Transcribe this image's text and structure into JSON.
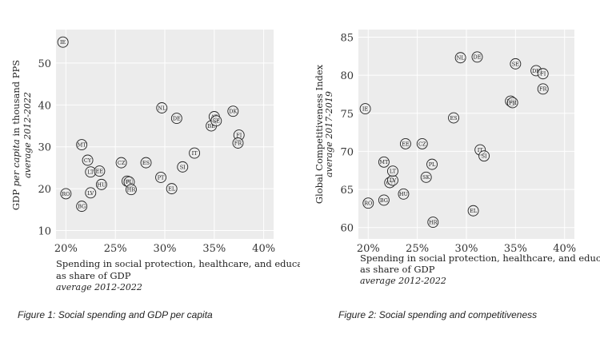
{
  "chart_data": [
    {
      "type": "scatter",
      "title": "",
      "xlabel": "Spending in social protection, healthcare, and education",
      "xlabel2": "as share of GDP",
      "xlabel_sub": "average 2012-2022",
      "ylabel_pre": "GDP ",
      "ylabel_italic": "per capita",
      "ylabel_post": " in thousand PPS",
      "ylabel_sub": "average 2012-2022",
      "xlim": [
        0.19,
        0.41
      ],
      "ylim": [
        8,
        58
      ],
      "xticks": [
        0.2,
        0.25,
        0.3,
        0.35,
        0.4
      ],
      "xtick_labels": [
        "20%",
        "25%",
        "30%",
        "35%",
        "40%"
      ],
      "yticks": [
        10,
        20,
        30,
        40,
        50
      ],
      "ytick_labels": [
        "10",
        "20",
        "30",
        "40",
        "50"
      ],
      "grid": true,
      "caption": "Figure 1: Social spending and GDP per capita",
      "points": [
        {
          "label": "IE",
          "x": 0.197,
          "y": 55.0
        },
        {
          "label": "RO",
          "x": 0.2,
          "y": 18.8
        },
        {
          "label": "BG",
          "x": 0.216,
          "y": 15.8
        },
        {
          "label": "MT",
          "x": 0.216,
          "y": 30.5
        },
        {
          "label": "CY",
          "x": 0.222,
          "y": 26.8
        },
        {
          "label": "LT",
          "x": 0.225,
          "y": 24.0
        },
        {
          "label": "EE",
          "x": 0.234,
          "y": 24.2
        },
        {
          "label": "LV",
          "x": 0.225,
          "y": 19.0
        },
        {
          "label": "HU",
          "x": 0.236,
          "y": 21.0
        },
        {
          "label": "CZ",
          "x": 0.256,
          "y": 26.2
        },
        {
          "label": "SK",
          "x": 0.262,
          "y": 21.8
        },
        {
          "label": "PL",
          "x": 0.264,
          "y": 21.6
        },
        {
          "label": "HR",
          "x": 0.266,
          "y": 19.8
        },
        {
          "label": "ES",
          "x": 0.281,
          "y": 26.2
        },
        {
          "label": "NL",
          "x": 0.297,
          "y": 39.3
        },
        {
          "label": "PT",
          "x": 0.296,
          "y": 22.7
        },
        {
          "label": "DE",
          "x": 0.312,
          "y": 36.8
        },
        {
          "label": "SI",
          "x": 0.318,
          "y": 25.2
        },
        {
          "label": "EL",
          "x": 0.307,
          "y": 20.0
        },
        {
          "label": "IT",
          "x": 0.33,
          "y": 28.5
        },
        {
          "label": "BE",
          "x": 0.347,
          "y": 35.0
        },
        {
          "label": "AT",
          "x": 0.35,
          "y": 37.2
        },
        {
          "label": "SE",
          "x": 0.352,
          "y": 36.2
        },
        {
          "label": "DK",
          "x": 0.369,
          "y": 38.5
        },
        {
          "label": "FI",
          "x": 0.375,
          "y": 32.8
        },
        {
          "label": "FR",
          "x": 0.374,
          "y": 30.9
        }
      ]
    },
    {
      "type": "scatter",
      "title": "",
      "xlabel": "Spending in social protection, healthcare, and education",
      "xlabel2": "as share of GDP",
      "xlabel_sub": "average 2012-2022",
      "ylabel": "Global Competitiveness Index",
      "ylabel_sub": "average 2017-2019",
      "xlim": [
        0.19,
        0.41
      ],
      "ylim": [
        58.5,
        86
      ],
      "xticks": [
        0.2,
        0.25,
        0.3,
        0.35,
        0.4
      ],
      "xtick_labels": [
        "20%",
        "25%",
        "30%",
        "35%",
        "40%"
      ],
      "yticks": [
        60,
        65,
        70,
        75,
        80,
        85
      ],
      "ytick_labels": [
        "60",
        "65",
        "70",
        "75",
        "80",
        "85"
      ],
      "grid": true,
      "caption": "Figure 2: Social spending and competitiveness",
      "points": [
        {
          "label": "IE",
          "x": 0.197,
          "y": 75.6
        },
        {
          "label": "RO",
          "x": 0.2,
          "y": 63.2
        },
        {
          "label": "BG",
          "x": 0.216,
          "y": 63.6
        },
        {
          "label": "MT",
          "x": 0.216,
          "y": 68.6
        },
        {
          "label": "CY",
          "x": 0.222,
          "y": 65.9
        },
        {
          "label": "LV",
          "x": 0.225,
          "y": 66.2
        },
        {
          "label": "LT",
          "x": 0.225,
          "y": 67.4
        },
        {
          "label": "HU",
          "x": 0.236,
          "y": 64.4
        },
        {
          "label": "EE",
          "x": 0.238,
          "y": 71.0
        },
        {
          "label": "CZ",
          "x": 0.255,
          "y": 71.0
        },
        {
          "label": "SK",
          "x": 0.259,
          "y": 66.6
        },
        {
          "label": "PL",
          "x": 0.265,
          "y": 68.3
        },
        {
          "label": "HR",
          "x": 0.266,
          "y": 60.7
        },
        {
          "label": "ES",
          "x": 0.287,
          "y": 74.4
        },
        {
          "label": "NL",
          "x": 0.294,
          "y": 82.3
        },
        {
          "label": "DE",
          "x": 0.311,
          "y": 82.4
        },
        {
          "label": "EL",
          "x": 0.307,
          "y": 62.2
        },
        {
          "label": "IT",
          "x": 0.314,
          "y": 70.2
        },
        {
          "label": "SI",
          "x": 0.318,
          "y": 69.4
        },
        {
          "label": "BE",
          "x": 0.345,
          "y": 76.6
        },
        {
          "label": "FR",
          "x": 0.347,
          "y": 76.4
        },
        {
          "label": "SE",
          "x": 0.35,
          "y": 81.5
        },
        {
          "label": "DK",
          "x": 0.371,
          "y": 80.6
        },
        {
          "label": "FI",
          "x": 0.378,
          "y": 80.2
        },
        {
          "label": "FR",
          "x": 0.378,
          "y": 78.2
        }
      ]
    }
  ]
}
